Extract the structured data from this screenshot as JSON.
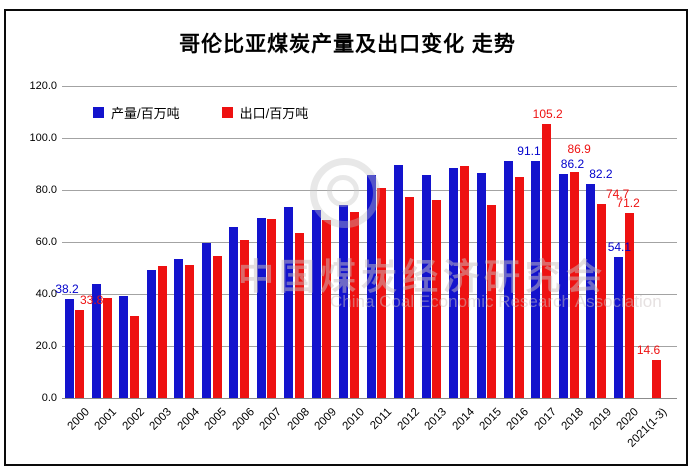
{
  "window": {
    "title": "哥伦比亚煤炭产量及出口变化 走势"
  },
  "chart_data": {
    "type": "bar",
    "title": "哥伦比亚煤炭产量及出口变化 走势",
    "categories": [
      "2000",
      "2001",
      "2002",
      "2003",
      "2004",
      "2005",
      "2006",
      "2007",
      "2008",
      "2009",
      "2010",
      "2011",
      "2012",
      "2013",
      "2014",
      "2015",
      "2016",
      "2017",
      "2018",
      "2019",
      "2020",
      "2021(1-3)"
    ],
    "series": [
      {
        "name": "产量/百万吨",
        "color": "#1313cd",
        "label_color": "#0000cc",
        "values": [
          38.2,
          43.9,
          39.2,
          49.2,
          53.6,
          59.5,
          65.9,
          69.2,
          73.5,
          72.4,
          74.2,
          85.6,
          89.7,
          85.7,
          88.6,
          86.4,
          91.0,
          91.1,
          86.2,
          82.2,
          54.1,
          null
        ]
      },
      {
        "name": "出口/百万吨",
        "color": "#ee1111",
        "label_color": "#ee1111",
        "values": [
          33.8,
          38.5,
          31.5,
          50.6,
          51.0,
          54.6,
          60.8,
          69.0,
          63.3,
          68.3,
          71.7,
          80.9,
          77.3,
          76.3,
          89.1,
          74.3,
          84.9,
          105.2,
          86.9,
          74.7,
          71.2,
          14.6
        ]
      }
    ],
    "point_labels": [
      {
        "category": "2000",
        "series": "产量/百万吨",
        "text": "38.2"
      },
      {
        "category": "2000",
        "series": "出口/百万吨",
        "text": "33.8"
      },
      {
        "category": "2017",
        "series": "产量/百万吨",
        "text": "91.1"
      },
      {
        "category": "2017",
        "series": "出口/百万吨",
        "text": "105.2"
      },
      {
        "category": "2018",
        "series": "产量/百万吨",
        "text": "86.2"
      },
      {
        "category": "2018",
        "series": "出口/百万吨",
        "text": "86.9"
      },
      {
        "category": "2019",
        "series": "产量/百万吨",
        "text": "82.2"
      },
      {
        "category": "2019",
        "series": "出口/百万吨",
        "text": "74.7"
      },
      {
        "category": "2020",
        "series": "产量/百万吨",
        "text": "54.1"
      },
      {
        "category": "2020",
        "series": "出口/百万吨",
        "text": "71.2"
      },
      {
        "category": "2021(1-3)",
        "series": "出口/百万吨",
        "text": "14.6"
      }
    ],
    "ylim": [
      0,
      120
    ],
    "ytick_step": 20,
    "yticks": [
      "0.0",
      "20.0",
      "40.0",
      "60.0",
      "80.0",
      "100.0",
      "120.0"
    ],
    "grid": true,
    "legend_position": "inside-top-left",
    "gridline_color": "#a3a3a3"
  },
  "watermark": {
    "chinese": "中国煤炭经济研究会",
    "english": "China Coal Economic Research Association",
    "logo": "concentric-rings-logo"
  }
}
